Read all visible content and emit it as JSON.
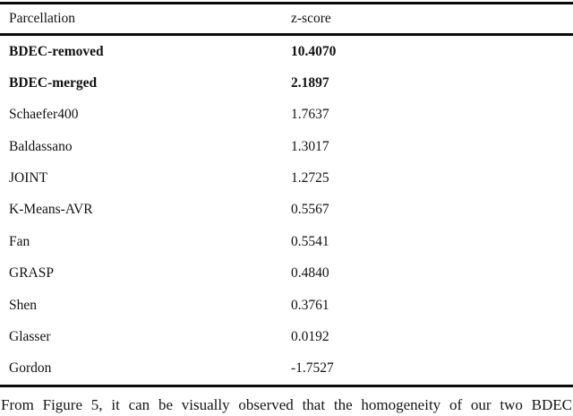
{
  "table": {
    "columns": {
      "parcellation": "Parcellation",
      "z_score": "z-score"
    },
    "rows": [
      {
        "name": "BDEC-removed",
        "z": "10.4070",
        "bold": true
      },
      {
        "name": "BDEC-merged",
        "z": "2.1897",
        "bold": true
      },
      {
        "name": "Schaefer400",
        "z": "1.7637",
        "bold": false
      },
      {
        "name": "Baldassano",
        "z": "1.3017",
        "bold": false
      },
      {
        "name": "JOINT",
        "z": "1.2725",
        "bold": false
      },
      {
        "name": "K-Means-AVR",
        "z": "0.5567",
        "bold": false
      },
      {
        "name": "Fan",
        "z": "0.5541",
        "bold": false
      },
      {
        "name": "GRASP",
        "z": "0.4840",
        "bold": false
      },
      {
        "name": "Shen",
        "z": "0.3761",
        "bold": false
      },
      {
        "name": "Glasser",
        "z": "0.0192",
        "bold": false
      },
      {
        "name": "Gordon",
        "z": "-1.7527",
        "bold": false
      }
    ]
  },
  "body_text": "From Figure 5, it can be visually observed that the homogeneity of our two BDEC",
  "colors": {
    "background": "#ffffff",
    "text": "#111111",
    "rule": "#0a0a0a"
  }
}
